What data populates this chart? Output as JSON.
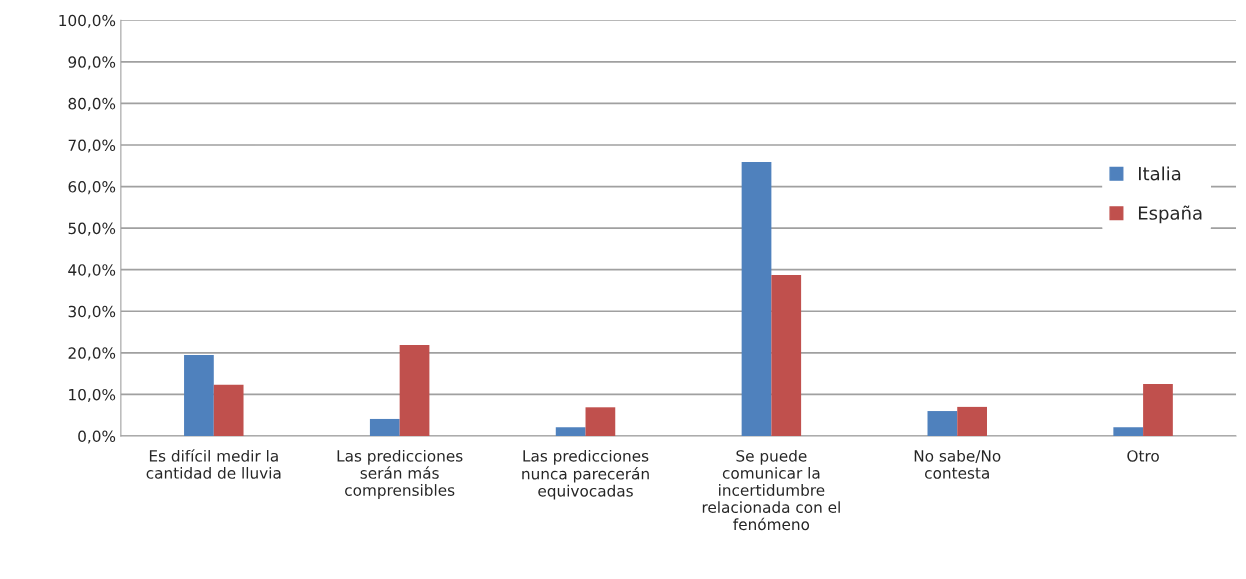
{
  "chart_data": {
    "type": "bar",
    "categories": [
      "Es difícil medir la\ncantidad de lluvia",
      "Las predicciones\nserán más\ncomprensibles",
      "Las predicciones\nnunca parecerán\nequivocadas",
      "Se puede\ncomunicar la\nincertidumbre\nrelacionada con el\nfenómeno",
      "No sabe/No\ncontesta",
      "Otro"
    ],
    "series": [
      {
        "name": "Italia",
        "color": "#4f81bd",
        "values": [
          19.5,
          4.1,
          2.1,
          65.9,
          6.0,
          2.1
        ]
      },
      {
        "name": "España",
        "color": "#c0504d",
        "values": [
          12.3,
          21.9,
          6.9,
          38.7,
          7.0,
          12.5
        ]
      }
    ],
    "ylim": [
      0,
      100
    ],
    "yticks": [
      {
        "value": 0,
        "label": "0,0%"
      },
      {
        "value": 10,
        "label": "10,0%"
      },
      {
        "value": 20,
        "label": "20,0%"
      },
      {
        "value": 30,
        "label": "30,0%"
      },
      {
        "value": 40,
        "label": "40,0%"
      },
      {
        "value": 50,
        "label": "50,0%"
      },
      {
        "value": 60,
        "label": "60,0%"
      },
      {
        "value": 70,
        "label": "70,0%"
      },
      {
        "value": 80,
        "label": "80,0%"
      },
      {
        "value": 90,
        "label": "90,0%"
      },
      {
        "value": 100,
        "label": "100,0%"
      }
    ],
    "grid": "y",
    "legend": "right"
  }
}
